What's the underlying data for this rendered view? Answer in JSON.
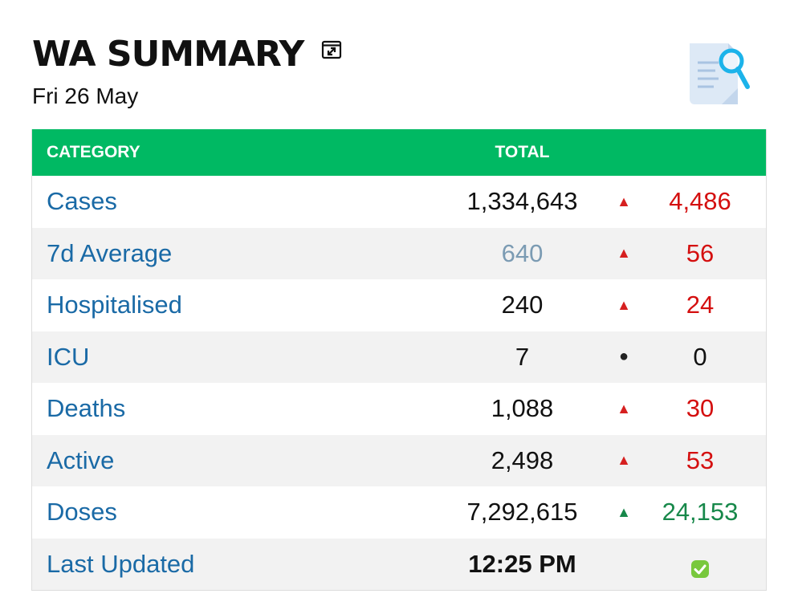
{
  "header": {
    "title": "WA SUMMARY",
    "date": "Fri 26 May"
  },
  "icons": {
    "popout": "expand-window-icon",
    "document": "document-search-icon",
    "check": "check-circle-icon"
  },
  "colors": {
    "header_bg": "#00b963",
    "category_text": "#1a6aa6",
    "increase_red": "#d40f0f",
    "increase_green": "#17884a"
  },
  "table": {
    "headers": {
      "category": "CATEGORY",
      "total": "TOTAL"
    },
    "rows": [
      {
        "category": "Cases",
        "total": "1,334,643",
        "indicator": "▲",
        "change": "4,486"
      },
      {
        "category": "7d Average",
        "total": "640",
        "indicator": "▲",
        "change": "56"
      },
      {
        "category": "Hospitalised",
        "total": "240",
        "indicator": "▲",
        "change": "24"
      },
      {
        "category": "ICU",
        "total": "7",
        "indicator": "●",
        "change": "0"
      },
      {
        "category": "Deaths",
        "total": "1,088",
        "indicator": "▲",
        "change": "30"
      },
      {
        "category": "Active",
        "total": "2,498",
        "indicator": "▲",
        "change": "53"
      },
      {
        "category": "Doses",
        "total": "7,292,615",
        "indicator": "▲",
        "change": "24,153"
      },
      {
        "category": "Last Updated",
        "total": "12:25 PM"
      }
    ]
  }
}
